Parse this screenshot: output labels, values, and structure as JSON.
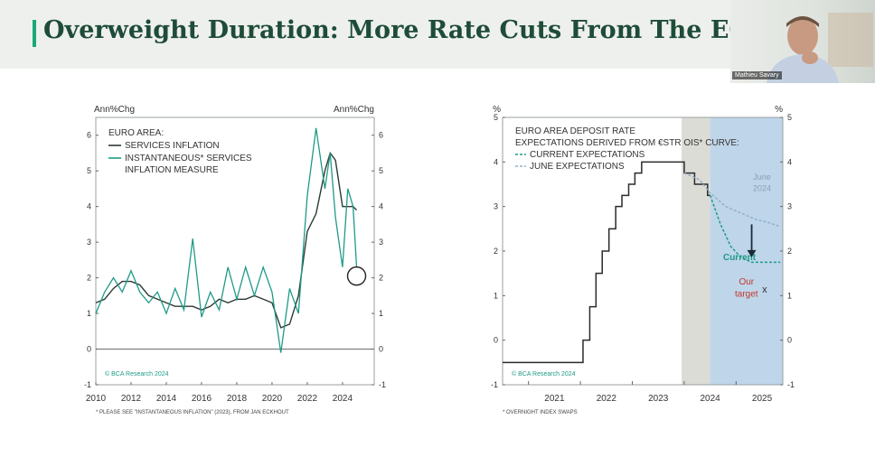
{
  "header": {
    "title": "Overweight Duration: More Rate Cuts From The ECB",
    "accent_color": "#1aa87a",
    "title_color": "#1e4c38"
  },
  "webcam": {
    "participant_name": "Mathieu Savary"
  },
  "chart_data": [
    {
      "type": "line",
      "left_unit": "Ann%Chg",
      "right_unit": "Ann%Chg",
      "legend_title": "EURO AREA:",
      "series": [
        {
          "name": "SERVICES INFLATION",
          "color": "#2d3a33",
          "x": [
            2010,
            2010.5,
            2011,
            2011.5,
            2012,
            2012.5,
            2013,
            2013.5,
            2014,
            2014.5,
            2015,
            2015.5,
            2016,
            2016.5,
            2017,
            2017.5,
            2018,
            2018.5,
            2019,
            2019.5,
            2020,
            2020.5,
            2021,
            2021.5,
            2022,
            2022.5,
            2023,
            2023.3,
            2023.6,
            2024,
            2024.3,
            2024.6,
            2024.8
          ],
          "values": [
            1.3,
            1.4,
            1.7,
            1.9,
            1.9,
            1.8,
            1.5,
            1.4,
            1.3,
            1.2,
            1.2,
            1.2,
            1.1,
            1.2,
            1.4,
            1.3,
            1.4,
            1.4,
            1.5,
            1.4,
            1.3,
            0.6,
            0.7,
            1.5,
            3.3,
            3.8,
            5.0,
            5.5,
            5.3,
            4.0,
            4.0,
            4.0,
            3.9
          ]
        },
        {
          "name": "INSTANTANEOUS* SERVICES INFLATION MEASURE",
          "color": "#1f9a86",
          "x": [
            2010,
            2010.5,
            2011,
            2011.5,
            2012,
            2012.5,
            2013,
            2013.5,
            2014,
            2014.5,
            2015,
            2015.5,
            2016,
            2016.5,
            2017,
            2017.5,
            2018,
            2018.5,
            2019,
            2019.5,
            2020,
            2020.5,
            2021,
            2021.5,
            2022,
            2022.5,
            2023,
            2023.3,
            2023.6,
            2024,
            2024.3,
            2024.6,
            2024.8
          ],
          "values": [
            1.0,
            1.6,
            2.0,
            1.6,
            2.2,
            1.6,
            1.3,
            1.6,
            1.0,
            1.7,
            1.1,
            3.1,
            0.9,
            1.6,
            1.1,
            2.3,
            1.4,
            2.3,
            1.5,
            2.3,
            1.6,
            -0.1,
            1.7,
            1.0,
            4.3,
            6.2,
            4.5,
            5.5,
            3.7,
            2.3,
            4.5,
            4.0,
            2.3
          ]
        }
      ],
      "x_ticks": [
        "2010",
        "2012",
        "2014",
        "2016",
        "2018",
        "2020",
        "2022",
        "2024"
      ],
      "y_ticks": [
        "-1",
        "0",
        "1",
        "2",
        "3",
        "4",
        "5",
        "6"
      ],
      "ylim": [
        -1,
        6.5
      ],
      "xlim": [
        2010,
        2025.8
      ],
      "circle_annotation": {
        "x": 2024.8,
        "y": 2.05
      },
      "watermark": "© BCA Research 2024",
      "footnote": "* PLEASE SEE \"INSTANTANEOUS INFLATION\" (2023), FROM JAN ECKHOUT"
    },
    {
      "type": "line",
      "left_unit": "%",
      "right_unit": "%",
      "legend_title_1": "EURO AREA DEPOSIT RATE",
      "legend_title_2": "EXPECTATIONS DERIVED FROM €STR OIS* CURVE:",
      "legend_current": "CURRENT EXPECTATIONS",
      "legend_june": "JUNE EXPECTATIONS",
      "series": [
        {
          "name": "DEPOSIT RATE",
          "color": "#2b2b2b",
          "x": [
            2020.5,
            2022.05,
            2022.05,
            2022.18,
            2022.18,
            2022.3,
            2022.3,
            2022.42,
            2022.42,
            2022.55,
            2022.55,
            2022.68,
            2022.68,
            2022.8,
            2022.8,
            2022.93,
            2022.93,
            2023.05,
            2023.05,
            2023.18,
            2023.18,
            2023.3,
            2023.3,
            2023.45,
            2023.45,
            2023.62,
            2023.62,
            2023.95,
            2023.95,
            2024.0,
            2024.0,
            2024.2,
            2024.2,
            2024.45,
            2024.45,
            2024.5
          ],
          "values": [
            -0.5,
            -0.5,
            0,
            0,
            0.75,
            0.75,
            1.5,
            1.5,
            2.0,
            2.0,
            2.5,
            2.5,
            3.0,
            3.0,
            3.25,
            3.25,
            3.5,
            3.5,
            3.75,
            3.75,
            4.0,
            4.0,
            4.0,
            4.0,
            4.0,
            4.0,
            4.0,
            4.0,
            4.0,
            4.0,
            3.75,
            3.75,
            3.5,
            3.5,
            3.25,
            3.25
          ]
        },
        {
          "name": "CURRENT EXPECTATIONS",
          "color": "#1f9a86",
          "x": [
            2024.5,
            2024.7,
            2024.9,
            2025.1,
            2025.3,
            2025.6,
            2025.85
          ],
          "values": [
            3.25,
            2.6,
            2.1,
            1.85,
            1.75,
            1.75,
            1.75
          ]
        },
        {
          "name": "JUNE EXPECTATIONS",
          "color": "#8fb0c9",
          "x": [
            2024.0,
            2024.3,
            2024.5,
            2024.8,
            2025.1,
            2025.4,
            2025.6,
            2025.85
          ],
          "values": [
            3.75,
            3.6,
            3.3,
            3.0,
            2.85,
            2.7,
            2.65,
            2.55
          ]
        }
      ],
      "x_ticks": [
        "2021",
        "2022",
        "2023",
        "2024",
        "2025"
      ],
      "y_ticks": [
        "-1",
        "0",
        "1",
        "2",
        "3",
        "4",
        "5"
      ],
      "ylim": [
        -1,
        5
      ],
      "xlim": [
        2020.5,
        2025.9
      ],
      "shaded_regions": [
        {
          "from": 2023.95,
          "to": 2024.5,
          "color": "#dcdcd6"
        },
        {
          "from": 2024.5,
          "to": 2025.9,
          "color": "#bfd5ea"
        }
      ],
      "annotations": {
        "june": "June 2024",
        "current": "Current",
        "target": "Our target",
        "target_marker": "x",
        "target_point": {
          "x": 2025.55,
          "y": 1.15
        },
        "arrow": {
          "x": 2025.3,
          "from_y": 2.6,
          "to_y": 1.9
        }
      },
      "watermark": "© BCA Research 2024",
      "footnote": "* OVERNIGHT INDEX SWAPS"
    }
  ]
}
